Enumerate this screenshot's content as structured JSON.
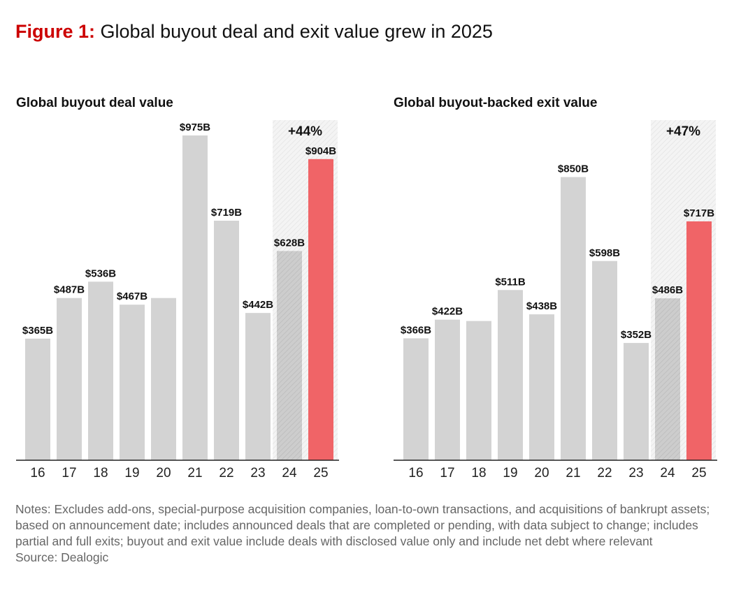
{
  "figure": {
    "label": "Figure 1:",
    "title": "Global buyout deal and exit value grew in 2025"
  },
  "colors": {
    "bar": "#d3d3d3",
    "bar_prior_year": "#c2c2c2",
    "bar_highlight": "#f06467",
    "highlight_band": "#f3f3f3",
    "axis": "#222222",
    "title_accent": "#cc0000"
  },
  "chart_data": [
    {
      "type": "bar",
      "title": "Global buyout deal value",
      "categories": [
        "16",
        "17",
        "18",
        "19",
        "20",
        "21",
        "22",
        "23",
        "24",
        "25"
      ],
      "values": [
        365,
        487,
        536,
        467,
        487,
        975,
        719,
        442,
        628,
        904
      ],
      "labels": [
        "$365B",
        "$487B",
        "$536B",
        "$467B",
        "",
        "$975B",
        "$719B",
        "$442B",
        "$628B",
        "$904B"
      ],
      "highlight_index": 9,
      "prior_index": 8,
      "change_annotation": "+44%",
      "unit": "$B",
      "ylim": [
        0,
        1000
      ],
      "grid": false
    },
    {
      "type": "bar",
      "title": "Global buyout-backed exit value",
      "categories": [
        "16",
        "17",
        "18",
        "19",
        "20",
        "21",
        "22",
        "23",
        "24",
        "25"
      ],
      "values": [
        366,
        422,
        418,
        511,
        438,
        850,
        598,
        352,
        486,
        717
      ],
      "labels": [
        "$366B",
        "$422B",
        "",
        "$511B",
        "$438B",
        "$850B",
        "$598B",
        "$352B",
        "$486B",
        "$717B"
      ],
      "highlight_index": 9,
      "prior_index": 8,
      "change_annotation": "+47%",
      "unit": "$B",
      "ylim": [
        0,
        1000
      ],
      "grid": false
    }
  ],
  "notes": {
    "text": "Notes: Excludes add-ons, special-purpose acquisition companies, loan-to-own transactions, and acquisitions of bankrupt assets; based on announcement date; includes announced deals that are completed or pending, with data subject to change; includes partial and full exits; buyout and exit value include deals with disclosed value only and include net debt where relevant",
    "source": "Source: Dealogic"
  }
}
